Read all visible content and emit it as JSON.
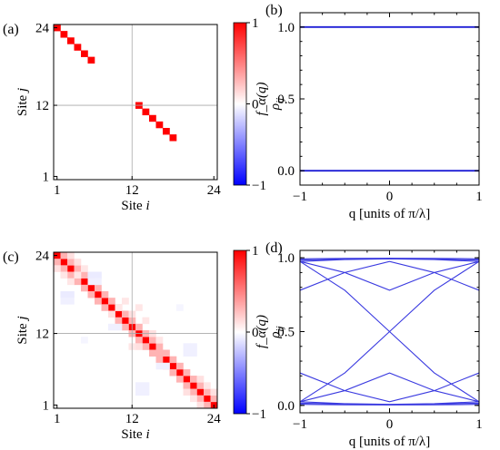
{
  "chart_data": [
    {
      "panel": "(a)",
      "type": "heatmap",
      "xlabel_text": "Site ",
      "xlabel_var": "i",
      "ylabel_text": "Site ",
      "ylabel_var": "j",
      "xticks": [
        "1",
        "12",
        "24"
      ],
      "yticks": [
        "1",
        "12",
        "24"
      ],
      "n": 24,
      "colorbar": {
        "label": "ρ",
        "label_sub": "ij",
        "ticks": [
          "1",
          "0",
          "−1"
        ],
        "min": -1,
        "max": 1
      },
      "cells": [
        {
          "i": 1,
          "j": 24,
          "v": 1
        },
        {
          "i": 2,
          "j": 23,
          "v": 1
        },
        {
          "i": 3,
          "j": 22,
          "v": 1
        },
        {
          "i": 4,
          "j": 21,
          "v": 1
        },
        {
          "i": 5,
          "j": 20,
          "v": 1
        },
        {
          "i": 6,
          "j": 19,
          "v": 1
        },
        {
          "i": 13,
          "j": 12,
          "v": 1
        },
        {
          "i": 14,
          "j": 11,
          "v": 1
        },
        {
          "i": 15,
          "j": 10,
          "v": 1
        },
        {
          "i": 16,
          "j": 9,
          "v": 1
        },
        {
          "i": 17,
          "j": 8,
          "v": 1
        },
        {
          "i": 18,
          "j": 7,
          "v": 1
        }
      ]
    },
    {
      "panel": "(b)",
      "type": "line",
      "xlabel": "q [units of π/λ]",
      "ylabel": "f_α(q)",
      "xlim": [
        -1,
        1
      ],
      "ylim": [
        -0.1,
        1.1
      ],
      "xticks": [
        "−1",
        "0",
        "1"
      ],
      "yticks": [
        "0.0",
        "0.5",
        "1.0"
      ],
      "series": [
        {
          "x": [
            -1,
            1
          ],
          "y": [
            1.0,
            1.0
          ]
        },
        {
          "x": [
            -1,
            1
          ],
          "y": [
            0.0,
            0.0
          ]
        }
      ]
    },
    {
      "panel": "(c)",
      "type": "heatmap",
      "xlabel_text": "Site ",
      "xlabel_var": "i",
      "ylabel_text": "Site ",
      "ylabel_var": "j",
      "xticks": [
        "1",
        "12",
        "24"
      ],
      "yticks": [
        "1",
        "12",
        "24"
      ],
      "n": 24,
      "colorbar": {
        "label": "ρ",
        "label_sub": "ij",
        "ticks": [
          "1",
          "0",
          "−1"
        ],
        "min": -1,
        "max": 1
      },
      "cells": [
        {
          "i": 1,
          "j": 24,
          "v": 1
        },
        {
          "i": 2,
          "j": 23,
          "v": 1
        },
        {
          "i": 3,
          "j": 22,
          "v": 1
        },
        {
          "i": 4,
          "j": 21,
          "v": 1
        },
        {
          "i": 5,
          "j": 20,
          "v": 1
        },
        {
          "i": 6,
          "j": 19,
          "v": 1
        },
        {
          "i": 7,
          "j": 18,
          "v": 1
        },
        {
          "i": 8,
          "j": 17,
          "v": 1
        },
        {
          "i": 9,
          "j": 16,
          "v": 1
        },
        {
          "i": 10,
          "j": 15,
          "v": 1
        },
        {
          "i": 11,
          "j": 14,
          "v": 1
        },
        {
          "i": 12,
          "j": 13,
          "v": 1
        },
        {
          "i": 13,
          "j": 12,
          "v": 1
        },
        {
          "i": 14,
          "j": 11,
          "v": 1
        },
        {
          "i": 15,
          "j": 10,
          "v": 1
        },
        {
          "i": 16,
          "j": 9,
          "v": 1
        },
        {
          "i": 17,
          "j": 8,
          "v": 1
        },
        {
          "i": 18,
          "j": 7,
          "v": 1
        },
        {
          "i": 19,
          "j": 6,
          "v": 1
        },
        {
          "i": 20,
          "j": 5,
          "v": 1
        },
        {
          "i": 21,
          "j": 4,
          "v": 1
        },
        {
          "i": 22,
          "j": 3,
          "v": 1
        },
        {
          "i": 23,
          "j": 2,
          "v": 1
        },
        {
          "i": 24,
          "j": 1,
          "v": 1
        },
        {
          "i": 2,
          "j": 24,
          "v": 0.3
        },
        {
          "i": 3,
          "j": 23,
          "v": 0.3
        },
        {
          "i": 4,
          "j": 22,
          "v": 0.3
        },
        {
          "i": 5,
          "j": 21,
          "v": 0.3
        },
        {
          "i": 6,
          "j": 20,
          "v": 0.3
        },
        {
          "i": 7,
          "j": 19,
          "v": 0.3
        },
        {
          "i": 8,
          "j": 18,
          "v": 0.3
        },
        {
          "i": 9,
          "j": 17,
          "v": 0.3
        },
        {
          "i": 10,
          "j": 16,
          "v": 0.3
        },
        {
          "i": 11,
          "j": 15,
          "v": 0.3
        },
        {
          "i": 12,
          "j": 14,
          "v": 0.3
        },
        {
          "i": 13,
          "j": 13,
          "v": 0.3
        },
        {
          "i": 14,
          "j": 12,
          "v": 0.3
        },
        {
          "i": 15,
          "j": 11,
          "v": 0.3
        },
        {
          "i": 16,
          "j": 10,
          "v": 0.3
        },
        {
          "i": 17,
          "j": 9,
          "v": 0.3
        },
        {
          "i": 18,
          "j": 8,
          "v": 0.3
        },
        {
          "i": 19,
          "j": 7,
          "v": 0.3
        },
        {
          "i": 20,
          "j": 6,
          "v": 0.3
        },
        {
          "i": 21,
          "j": 5,
          "v": 0.3
        },
        {
          "i": 22,
          "j": 4,
          "v": 0.3
        },
        {
          "i": 23,
          "j": 3,
          "v": 0.3
        },
        {
          "i": 24,
          "j": 2,
          "v": 0.3
        },
        {
          "i": 1,
          "j": 23,
          "v": 0.3
        },
        {
          "i": 2,
          "j": 22,
          "v": 0.3
        },
        {
          "i": 3,
          "j": 21,
          "v": 0.3
        },
        {
          "i": 4,
          "j": 20,
          "v": 0.3
        },
        {
          "i": 5,
          "j": 19,
          "v": 0.3
        },
        {
          "i": 6,
          "j": 18,
          "v": 0.3
        },
        {
          "i": 7,
          "j": 17,
          "v": 0.3
        },
        {
          "i": 8,
          "j": 16,
          "v": 0.3
        },
        {
          "i": 9,
          "j": 15,
          "v": 0.3
        },
        {
          "i": 10,
          "j": 14,
          "v": 0.3
        },
        {
          "i": 11,
          "j": 13,
          "v": 0.3
        },
        {
          "i": 12,
          "j": 12,
          "v": 0.3
        },
        {
          "i": 13,
          "j": 11,
          "v": 0.3
        },
        {
          "i": 14,
          "j": 10,
          "v": 0.3
        },
        {
          "i": 15,
          "j": 9,
          "v": 0.3
        },
        {
          "i": 16,
          "j": 8,
          "v": 0.3
        },
        {
          "i": 17,
          "j": 7,
          "v": 0.3
        },
        {
          "i": 18,
          "j": 6,
          "v": 0.3
        },
        {
          "i": 19,
          "j": 5,
          "v": 0.3
        },
        {
          "i": 20,
          "j": 4,
          "v": 0.3
        },
        {
          "i": 21,
          "j": 3,
          "v": 0.3
        },
        {
          "i": 22,
          "j": 2,
          "v": 0.3
        },
        {
          "i": 23,
          "j": 1,
          "v": 0.3
        },
        {
          "i": 3,
          "j": 24,
          "v": 0.12
        },
        {
          "i": 4,
          "j": 23,
          "v": 0.12
        },
        {
          "i": 4,
          "j": 21,
          "v": 0.1
        },
        {
          "i": 5,
          "j": 22,
          "v": 0.1
        },
        {
          "i": 2,
          "j": 21,
          "v": 0.1
        },
        {
          "i": 3,
          "j": 20,
          "v": 0.1
        },
        {
          "i": 1,
          "j": 22,
          "v": 0.12
        },
        {
          "i": 9,
          "j": 15,
          "v": 0.12
        },
        {
          "i": 10,
          "j": 16,
          "v": 0.1
        },
        {
          "i": 11,
          "j": 17,
          "v": 0.1
        },
        {
          "i": 12,
          "j": 15,
          "v": 0.12
        },
        {
          "i": 13,
          "j": 16,
          "v": 0.1
        },
        {
          "i": 14,
          "j": 14,
          "v": 0.1
        },
        {
          "i": 13,
          "j": 10,
          "v": 0.12
        },
        {
          "i": 15,
          "j": 12,
          "v": 0.12
        },
        {
          "i": 16,
          "j": 11,
          "v": 0.1
        },
        {
          "i": 16,
          "j": 9,
          "v": 0.3
        },
        {
          "i": 12,
          "j": 10,
          "v": 0.1
        },
        {
          "i": 21,
          "j": 5,
          "v": 0.3
        },
        {
          "i": 22,
          "j": 5,
          "v": 0.12
        },
        {
          "i": 20,
          "j": 3,
          "v": 0.12
        },
        {
          "i": 23,
          "j": 4,
          "v": 0.1
        },
        {
          "i": 21,
          "j": 2,
          "v": 0.1
        },
        {
          "i": 24,
          "j": 3,
          "v": 0.12
        },
        {
          "i": 22,
          "j": 1,
          "v": 0.12
        },
        {
          "i": 6,
          "j": 21,
          "v": -0.08
        },
        {
          "i": 7,
          "j": 21,
          "v": -0.08
        },
        {
          "i": 6,
          "j": 20,
          "v": -0.06
        },
        {
          "i": 7,
          "j": 20,
          "v": -0.06
        },
        {
          "i": 2,
          "j": 18,
          "v": -0.08
        },
        {
          "i": 3,
          "j": 18,
          "v": -0.08
        },
        {
          "i": 2,
          "j": 17,
          "v": -0.06
        },
        {
          "i": 3,
          "j": 17,
          "v": -0.06
        },
        {
          "i": 9,
          "j": 13,
          "v": -0.06
        },
        {
          "i": 10,
          "j": 13,
          "v": -0.06
        },
        {
          "i": 16,
          "j": 7,
          "v": -0.06
        },
        {
          "i": 17,
          "j": 7,
          "v": -0.06
        },
        {
          "i": 13,
          "j": 4,
          "v": -0.06
        },
        {
          "i": 14,
          "j": 4,
          "v": -0.06
        },
        {
          "i": 13,
          "j": 3,
          "v": -0.06
        },
        {
          "i": 14,
          "j": 3,
          "v": -0.06
        },
        {
          "i": 20,
          "j": 10,
          "v": -0.06
        },
        {
          "i": 21,
          "j": 10,
          "v": -0.06
        },
        {
          "i": 20,
          "j": 9,
          "v": -0.06
        },
        {
          "i": 21,
          "j": 9,
          "v": -0.06
        },
        {
          "i": 5,
          "j": 11,
          "v": -0.04
        },
        {
          "i": 19,
          "j": 16,
          "v": -0.04
        }
      ]
    },
    {
      "panel": "(d)",
      "type": "line",
      "xlabel": "q [units of π/λ]",
      "ylabel": "f_α(q)",
      "xlim": [
        -1,
        1
      ],
      "ylim": [
        -0.05,
        1.05
      ],
      "xticks": [
        "−1",
        "0",
        "1"
      ],
      "yticks": [
        "0.0",
        "0.5",
        "1.0"
      ],
      "series": [
        {
          "x": [
            -1,
            -0.5,
            0,
            0.5,
            1
          ],
          "y": [
            0.993,
            0.996,
            0.997,
            0.996,
            0.993
          ]
        },
        {
          "x": [
            -1,
            -0.5,
            0,
            0.5,
            1
          ],
          "y": [
            0.985,
            0.99,
            0.995,
            0.99,
            0.985
          ]
        },
        {
          "x": [
            -1,
            -0.5,
            0,
            0.5,
            1
          ],
          "y": [
            0.975,
            0.988,
            0.993,
            0.988,
            0.975
          ]
        },
        {
          "x": [
            -1,
            -0.5,
            0,
            0.5,
            1
          ],
          "y": [
            0.007,
            0.004,
            0.003,
            0.004,
            0.007
          ]
        },
        {
          "x": [
            -1,
            -0.5,
            0,
            0.5,
            1
          ],
          "y": [
            0.015,
            0.01,
            0.005,
            0.01,
            0.015
          ]
        },
        {
          "x": [
            -1,
            -0.5,
            0,
            0.5,
            1
          ],
          "y": [
            0.025,
            0.012,
            0.007,
            0.012,
            0.025
          ]
        },
        {
          "x": [
            -1,
            -0.5,
            0,
            0.5,
            1
          ],
          "y": [
            0.78,
            0.9,
            0.975,
            0.9,
            0.78
          ]
        },
        {
          "x": [
            -1,
            -0.5,
            0,
            0.5,
            1
          ],
          "y": [
            0.975,
            0.9,
            0.78,
            0.9,
            0.975
          ]
        },
        {
          "x": [
            -1,
            -0.5,
            0,
            0.5,
            1
          ],
          "y": [
            0.22,
            0.1,
            0.025,
            0.1,
            0.22
          ]
        },
        {
          "x": [
            -1,
            -0.5,
            0,
            0.5,
            1
          ],
          "y": [
            0.025,
            0.1,
            0.22,
            0.1,
            0.025
          ]
        },
        {
          "x": [
            -1,
            -0.5,
            0,
            0.5,
            1
          ],
          "y": [
            0.975,
            0.78,
            0.5,
            0.22,
            0.025
          ]
        },
        {
          "x": [
            -1,
            -0.5,
            0,
            0.5,
            1
          ],
          "y": [
            0.025,
            0.22,
            0.5,
            0.78,
            0.975
          ]
        }
      ]
    }
  ]
}
